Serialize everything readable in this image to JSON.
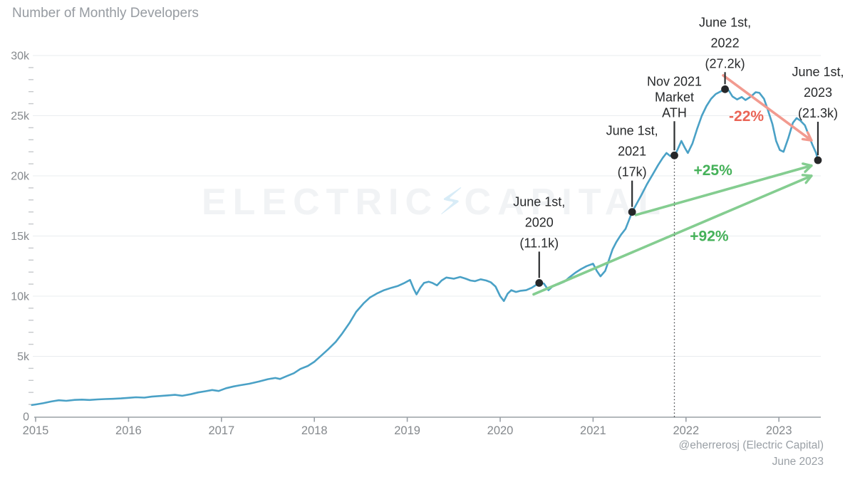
{
  "header": {
    "title": "Number of Monthly Developers"
  },
  "watermark": {
    "left": "ELECTRIC",
    "bolt": "⚡",
    "right": "CAPITAL"
  },
  "footer": {
    "credit": "@eherrerosj (Electric Capital)",
    "date": "June 2023"
  },
  "chart_data": {
    "type": "line",
    "title": "Number of Monthly Developers",
    "series_name": "Monthly developers",
    "grid": "horizontal",
    "legend": "none",
    "line_color": "#4aa1c6",
    "x_axis": {
      "ticks": [
        2015,
        2016,
        2017,
        2018,
        2019,
        2020,
        2021,
        2022,
        2023
      ],
      "range": [
        2014.96,
        2023.55
      ]
    },
    "y_axis": {
      "tick_values_k": [
        0,
        5,
        10,
        15,
        20,
        25,
        30
      ],
      "tick_labels": [
        "0",
        "5k",
        "10k",
        "15k",
        "20k",
        "25k",
        "30k"
      ],
      "range_k": [
        0,
        30
      ],
      "minor_step_k": 1
    },
    "styles": {
      "axis_color": "#9aa0a6",
      "grid_color": "#e9ecef",
      "minor_tick_color": "#c6c9cc",
      "tick_label_color": "#85898d",
      "annotation_color": "#27292b",
      "dot_color": "#262729",
      "connector_color": "#2c2e30",
      "dotted_line_color": "#3c3f43"
    },
    "points": [
      [
        2014.96,
        0.95
      ],
      [
        2015,
        1
      ],
      [
        2015.08,
        1.1
      ],
      [
        2015.17,
        1.25
      ],
      [
        2015.25,
        1.35
      ],
      [
        2015.33,
        1.3
      ],
      [
        2015.42,
        1.38
      ],
      [
        2015.5,
        1.4
      ],
      [
        2015.58,
        1.37
      ],
      [
        2015.67,
        1.42
      ],
      [
        2015.75,
        1.45
      ],
      [
        2015.83,
        1.47
      ],
      [
        2015.92,
        1.5
      ],
      [
        2016,
        1.55
      ],
      [
        2016.08,
        1.6
      ],
      [
        2016.17,
        1.57
      ],
      [
        2016.25,
        1.65
      ],
      [
        2016.33,
        1.7
      ],
      [
        2016.42,
        1.75
      ],
      [
        2016.5,
        1.8
      ],
      [
        2016.58,
        1.72
      ],
      [
        2016.67,
        1.85
      ],
      [
        2016.75,
        2
      ],
      [
        2016.83,
        2.1
      ],
      [
        2016.9,
        2.2
      ],
      [
        2016.97,
        2.12
      ],
      [
        2017.05,
        2.35
      ],
      [
        2017.13,
        2.5
      ],
      [
        2017.2,
        2.6
      ],
      [
        2017.3,
        2.72
      ],
      [
        2017.4,
        2.9
      ],
      [
        2017.5,
        3.1
      ],
      [
        2017.58,
        3.2
      ],
      [
        2017.63,
        3.12
      ],
      [
        2017.7,
        3.35
      ],
      [
        2017.78,
        3.6
      ],
      [
        2017.85,
        3.95
      ],
      [
        2017.93,
        4.2
      ],
      [
        2018,
        4.55
      ],
      [
        2018.08,
        5.1
      ],
      [
        2018.15,
        5.6
      ],
      [
        2018.23,
        6.2
      ],
      [
        2018.3,
        6.9
      ],
      [
        2018.38,
        7.8
      ],
      [
        2018.45,
        8.7
      ],
      [
        2018.53,
        9.4
      ],
      [
        2018.6,
        9.9
      ],
      [
        2018.68,
        10.25
      ],
      [
        2018.75,
        10.5
      ],
      [
        2018.83,
        10.7
      ],
      [
        2018.9,
        10.85
      ],
      [
        2018.97,
        11.1
      ],
      [
        2019.03,
        11.35
      ],
      [
        2019.07,
        10.6
      ],
      [
        2019.1,
        10.15
      ],
      [
        2019.14,
        10.7
      ],
      [
        2019.18,
        11.1
      ],
      [
        2019.23,
        11.2
      ],
      [
        2019.27,
        11.1
      ],
      [
        2019.32,
        10.9
      ],
      [
        2019.37,
        11.3
      ],
      [
        2019.42,
        11.55
      ],
      [
        2019.5,
        11.45
      ],
      [
        2019.57,
        11.6
      ],
      [
        2019.63,
        11.45
      ],
      [
        2019.68,
        11.3
      ],
      [
        2019.73,
        11.25
      ],
      [
        2019.79,
        11.4
      ],
      [
        2019.85,
        11.3
      ],
      [
        2019.9,
        11.15
      ],
      [
        2019.95,
        10.8
      ],
      [
        2020,
        10
      ],
      [
        2020.04,
        9.6
      ],
      [
        2020.08,
        10.2
      ],
      [
        2020.12,
        10.5
      ],
      [
        2020.17,
        10.35
      ],
      [
        2020.22,
        10.45
      ],
      [
        2020.28,
        10.5
      ],
      [
        2020.34,
        10.7
      ],
      [
        2020.42,
        11.1
      ],
      [
        2020.47,
        11.05
      ],
      [
        2020.52,
        10.5
      ],
      [
        2020.57,
        10.85
      ],
      [
        2020.63,
        11
      ],
      [
        2020.69,
        11.2
      ],
      [
        2020.75,
        11.6
      ],
      [
        2020.81,
        11.95
      ],
      [
        2020.87,
        12.25
      ],
      [
        2020.93,
        12.5
      ],
      [
        2021,
        12.7
      ],
      [
        2021.04,
        12.1
      ],
      [
        2021.08,
        11.65
      ],
      [
        2021.13,
        12.1
      ],
      [
        2021.17,
        13
      ],
      [
        2021.21,
        13.9
      ],
      [
        2021.25,
        14.5
      ],
      [
        2021.3,
        15.1
      ],
      [
        2021.35,
        15.6
      ],
      [
        2021.38,
        16.2
      ],
      [
        2021.42,
        17
      ],
      [
        2021.47,
        17.7
      ],
      [
        2021.52,
        18.4
      ],
      [
        2021.58,
        19.3
      ],
      [
        2021.64,
        20.1
      ],
      [
        2021.7,
        20.9
      ],
      [
        2021.75,
        21.5
      ],
      [
        2021.79,
        21.9
      ],
      [
        2021.83,
        21.65
      ],
      [
        2021.88,
        21.7
      ],
      [
        2021.91,
        22.2
      ],
      [
        2021.95,
        22.9
      ],
      [
        2021.99,
        22.3
      ],
      [
        2022.02,
        21.9
      ],
      [
        2022.07,
        22.7
      ],
      [
        2022.12,
        23.9
      ],
      [
        2022.17,
        25
      ],
      [
        2022.22,
        25.8
      ],
      [
        2022.27,
        26.4
      ],
      [
        2022.32,
        26.8
      ],
      [
        2022.37,
        27
      ],
      [
        2022.42,
        27.2
      ],
      [
        2022.46,
        27.1
      ],
      [
        2022.5,
        26.6
      ],
      [
        2022.55,
        26.35
      ],
      [
        2022.6,
        26.55
      ],
      [
        2022.64,
        26.3
      ],
      [
        2022.7,
        26.6
      ],
      [
        2022.75,
        26.95
      ],
      [
        2022.79,
        26.9
      ],
      [
        2022.84,
        26.4
      ],
      [
        2022.88,
        25.5
      ],
      [
        2022.93,
        24.3
      ],
      [
        2022.97,
        22.9
      ],
      [
        2023.01,
        22.15
      ],
      [
        2023.05,
        22
      ],
      [
        2023.1,
        23.1
      ],
      [
        2023.15,
        24.4
      ],
      [
        2023.19,
        24.8
      ],
      [
        2023.23,
        24.6
      ],
      [
        2023.28,
        24.2
      ],
      [
        2023.32,
        23.4
      ],
      [
        2023.36,
        22.6
      ],
      [
        2023.4,
        21.9
      ],
      [
        2023.42,
        21.3
      ]
    ],
    "annotations": [
      {
        "id": "june-2020",
        "lines": [
          "June 1st,",
          "2020",
          "(11.1k)"
        ],
        "t": 2020.42,
        "value_k": 11.1,
        "gap": 50,
        "line_height": 29
      },
      {
        "id": "june-2021",
        "lines": [
          "June 1st,",
          "2021",
          "(17k)"
        ],
        "t": 2021.42,
        "value_k": 17,
        "gap": 50,
        "line_height": 29
      },
      {
        "id": "nov-2021-ath",
        "lines": [
          "Nov 2021",
          "Market",
          "ATH"
        ],
        "t": 2021.875,
        "value_k": 21.7,
        "gap": 54,
        "line_height": 22,
        "dotted_drop_to_axis": true
      },
      {
        "id": "june-2022",
        "lines": [
          "June 1st,",
          "2022",
          "(27.2k)"
        ],
        "t": 2022.42,
        "value_k": 27.2,
        "gap": 30,
        "line_height": 29
      },
      {
        "id": "june-2023",
        "lines": [
          "June 1st,",
          "2023",
          "(21.3k)"
        ],
        "t": 2023.42,
        "value_k": 21.3,
        "gap": 60,
        "line_height": 29
      }
    ],
    "arrows": [
      {
        "id": "decline-22",
        "label": "-22%",
        "line_color": "#f29a8f",
        "label_color": "#ea6456",
        "from": [
          2022.4,
          28.35
        ],
        "to": [
          2023.35,
          22.95
        ],
        "label_at": [
          2022.65,
          24.55
        ]
      },
      {
        "id": "gain-25",
        "label": "+25%",
        "line_color": "#84cd90",
        "label_color": "#45b159",
        "from": [
          2021.46,
          16.75
        ],
        "to": [
          2023.35,
          20.85
        ],
        "label_at": [
          2022.29,
          20.05
        ]
      },
      {
        "id": "gain-92",
        "label": "+92%",
        "line_color": "#84cd90",
        "label_color": "#45b159",
        "from": [
          2020.36,
          10.15
        ],
        "to": [
          2023.35,
          20
        ],
        "label_at": [
          2022.25,
          14.6
        ]
      }
    ]
  }
}
